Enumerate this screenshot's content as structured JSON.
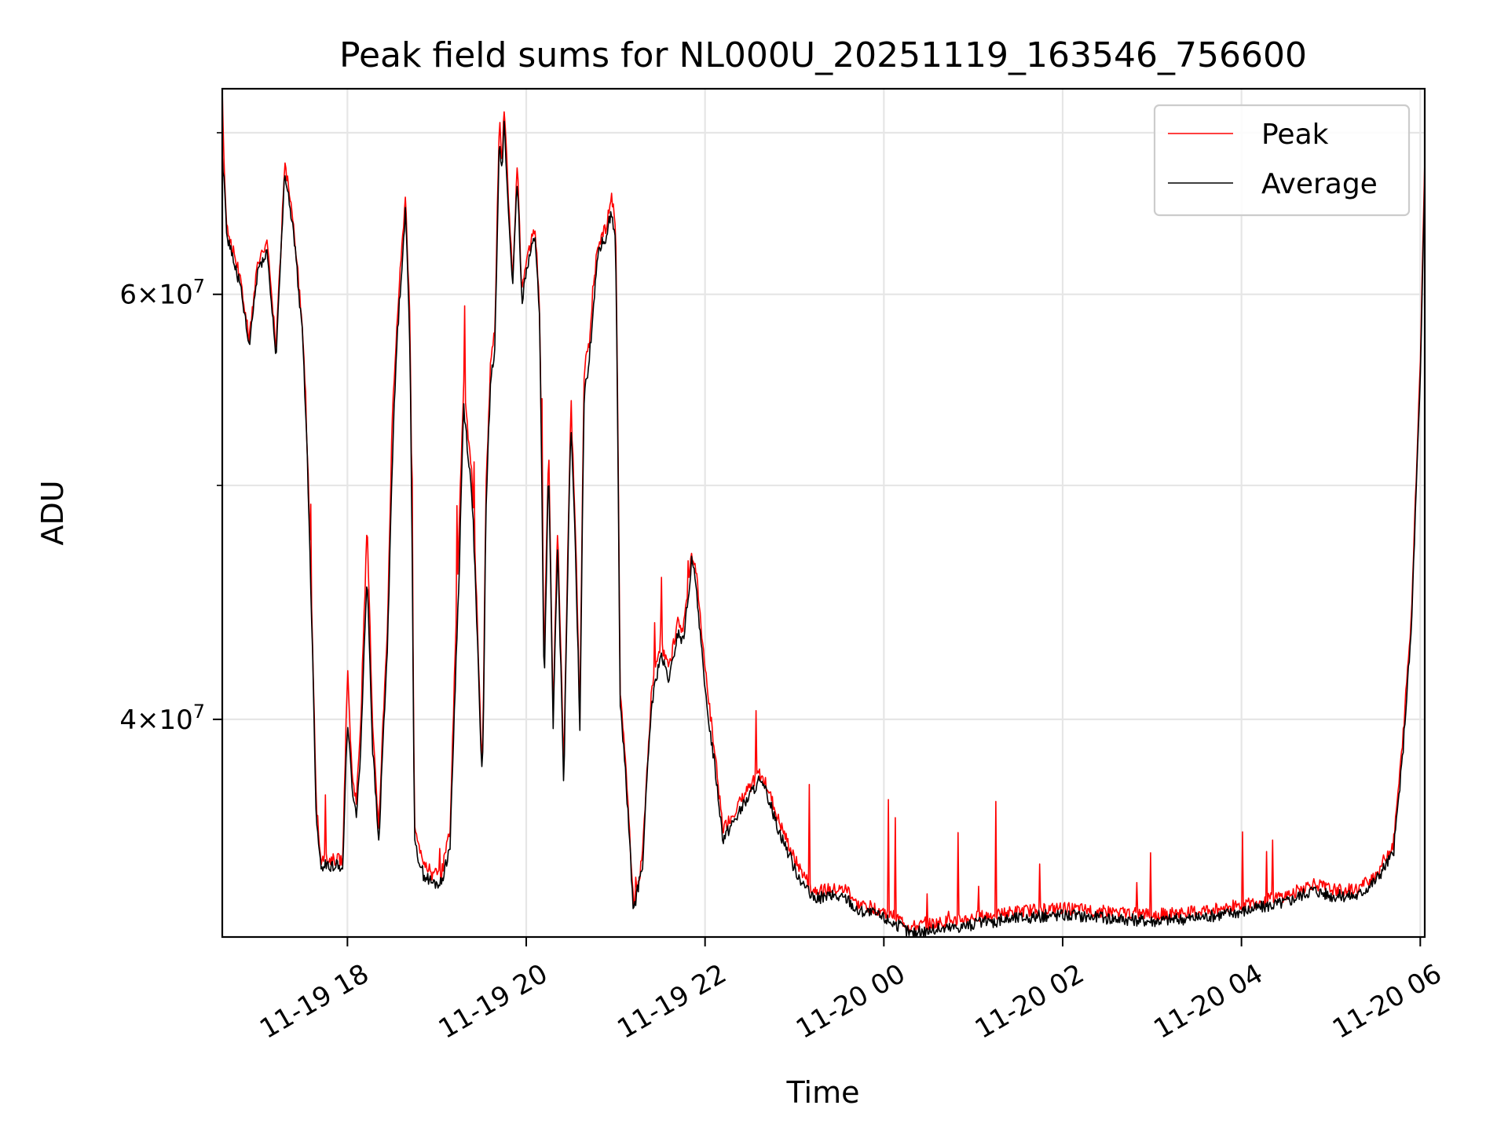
{
  "chart_data": {
    "type": "line",
    "title": "Peak field sums for NL000U_20251119_163546_756600",
    "xlabel": "Time",
    "ylabel": "ADU",
    "x_unit": "hours since 2025-11-19 00:00",
    "xlim": [
      16.6,
      30.05
    ],
    "ylim": [
      32500000,
      73000000
    ],
    "y_scale": "log",
    "grid": true,
    "legend_position": "top-right",
    "x_ticks": [
      {
        "value": 18,
        "label": "11-19 18"
      },
      {
        "value": 20,
        "label": "11-19 20"
      },
      {
        "value": 22,
        "label": "11-19 22"
      },
      {
        "value": 24,
        "label": "11-20 00"
      },
      {
        "value": 26,
        "label": "11-20 02"
      },
      {
        "value": 28,
        "label": "11-20 04"
      },
      {
        "value": 30,
        "label": "11-20 06"
      }
    ],
    "y_ticks_major": [
      {
        "value": 40000000,
        "base": "4",
        "exp": "7"
      },
      {
        "value": 60000000,
        "base": "6",
        "exp": "7"
      }
    ],
    "y_ticks_minor": [
      50000000,
      70000000
    ],
    "series": [
      {
        "name": "Peak",
        "color": "#ff0000",
        "x": [
          16.6,
          16.62,
          16.65,
          16.7,
          16.8,
          16.9,
          17.0,
          17.1,
          17.2,
          17.25,
          17.3,
          17.4,
          17.5,
          17.55,
          17.65,
          17.7,
          17.78,
          17.85,
          17.95,
          18.0,
          18.05,
          18.1,
          18.15,
          18.22,
          18.28,
          18.35,
          18.45,
          18.5,
          18.55,
          18.6,
          18.65,
          18.7,
          18.75,
          18.85,
          18.95,
          19.05,
          19.15,
          19.25,
          19.3,
          19.4,
          19.5,
          19.52,
          19.55,
          19.6,
          19.65,
          19.7,
          19.73,
          19.75,
          19.8,
          19.85,
          19.9,
          19.95,
          20.0,
          20.05,
          20.1,
          20.15,
          20.2,
          20.25,
          20.3,
          20.35,
          20.42,
          20.5,
          20.55,
          20.6,
          20.65,
          20.7,
          20.8,
          20.9,
          20.95,
          21.0,
          21.05,
          21.1,
          21.2,
          21.3,
          21.4,
          21.5,
          21.6,
          21.7,
          21.75,
          21.8,
          21.85,
          21.9,
          22.0,
          22.1,
          22.2,
          22.4,
          22.6,
          22.7,
          22.8,
          23.0,
          23.2,
          23.4,
          23.6,
          23.7,
          23.8,
          24.0,
          24.2,
          24.3,
          24.5,
          24.8,
          25.0,
          25.5,
          26.0,
          26.5,
          27.0,
          27.5,
          28.0,
          28.5,
          28.8,
          29.0,
          29.3,
          29.5,
          29.7,
          29.8,
          29.9,
          30.0,
          30.05
        ],
        "y": [
          73000000,
          68000000,
          64000000,
          63000000,
          61000000,
          57500000,
          62000000,
          63000000,
          57000000,
          62000000,
          68000000,
          64000000,
          58000000,
          52000000,
          37000000,
          35000000,
          35000000,
          35000000,
          35000000,
          42000000,
          38000000,
          37000000,
          40000000,
          48000000,
          40000000,
          36000000,
          44000000,
          53000000,
          58000000,
          62000000,
          66000000,
          58000000,
          36000000,
          35000000,
          34500000,
          34500000,
          36000000,
          48000000,
          55000000,
          50000000,
          38500000,
          40000000,
          50000000,
          56000000,
          58000000,
          71000000,
          68000000,
          72000000,
          66000000,
          61000000,
          68000000,
          60000000,
          62000000,
          63000000,
          64000000,
          59000000,
          42000000,
          52000000,
          40000000,
          48000000,
          38000000,
          54000000,
          48000000,
          40000000,
          56000000,
          57000000,
          63000000,
          64000000,
          66000000,
          64000000,
          41000000,
          39000000,
          33500000,
          35000000,
          41000000,
          43000000,
          42000000,
          44000000,
          43500000,
          45000000,
          47000000,
          46000000,
          42000000,
          39000000,
          36000000,
          37000000,
          38000000,
          37500000,
          36500000,
          35000000,
          34000000,
          34000000,
          34000000,
          33500000,
          33500000,
          33300000,
          33000000,
          32800000,
          32900000,
          33000000,
          33100000,
          33300000,
          33400000,
          33300000,
          33200000,
          33300000,
          33500000,
          33800000,
          34200000,
          34000000,
          34000000,
          34500000,
          35500000,
          39000000,
          44000000,
          56000000,
          68000000
        ]
      },
      {
        "name": "Average",
        "color": "#000000",
        "x": [
          16.6,
          16.62,
          16.65,
          16.7,
          16.8,
          16.9,
          17.0,
          17.1,
          17.2,
          17.25,
          17.3,
          17.4,
          17.5,
          17.55,
          17.65,
          17.7,
          17.78,
          17.85,
          17.95,
          18.0,
          18.05,
          18.1,
          18.15,
          18.22,
          18.28,
          18.35,
          18.45,
          18.5,
          18.55,
          18.6,
          18.65,
          18.7,
          18.75,
          18.85,
          18.95,
          19.05,
          19.15,
          19.25,
          19.3,
          19.4,
          19.5,
          19.52,
          19.55,
          19.6,
          19.65,
          19.7,
          19.73,
          19.75,
          19.8,
          19.85,
          19.9,
          19.95,
          20.0,
          20.05,
          20.1,
          20.15,
          20.2,
          20.25,
          20.3,
          20.35,
          20.42,
          20.5,
          20.55,
          20.6,
          20.65,
          20.7,
          20.8,
          20.9,
          20.95,
          21.0,
          21.05,
          21.1,
          21.2,
          21.3,
          21.4,
          21.5,
          21.6,
          21.7,
          21.75,
          21.8,
          21.85,
          21.9,
          22.0,
          22.1,
          22.2,
          22.4,
          22.6,
          22.7,
          22.8,
          23.0,
          23.2,
          23.4,
          23.6,
          23.7,
          23.8,
          24.0,
          24.2,
          24.3,
          24.5,
          24.8,
          25.0,
          25.5,
          26.0,
          26.5,
          27.0,
          27.5,
          28.0,
          28.5,
          28.8,
          29.0,
          29.3,
          29.5,
          29.7,
          29.8,
          29.9,
          30.0,
          30.05
        ],
        "y": [
          68500000,
          67000000,
          63500000,
          62500000,
          60500000,
          57000000,
          61500000,
          62500000,
          56500000,
          61500000,
          67500000,
          63500000,
          57500000,
          51500000,
          36500000,
          34800000,
          34800000,
          34800000,
          34800000,
          40000000,
          37500000,
          36500000,
          39000000,
          46000000,
          39000000,
          35500000,
          43000000,
          51000000,
          57000000,
          61000000,
          65000000,
          57000000,
          35500000,
          34500000,
          34200000,
          34200000,
          35500000,
          46000000,
          54000000,
          49000000,
          38000000,
          39500000,
          49000000,
          55000000,
          57000000,
          70000000,
          67000000,
          71000000,
          65000000,
          60500000,
          67000000,
          59500000,
          61500000,
          62500000,
          63500000,
          58500000,
          41000000,
          51000000,
          39500000,
          47000000,
          37500000,
          53000000,
          47000000,
          39500000,
          55000000,
          56000000,
          62500000,
          63500000,
          65000000,
          63000000,
          40500000,
          38500000,
          33300000,
          34800000,
          40500000,
          42500000,
          41500000,
          43500000,
          43000000,
          44500000,
          46500000,
          45500000,
          41000000,
          38500000,
          35700000,
          36700000,
          37700000,
          37200000,
          36200000,
          34700000,
          33700000,
          33800000,
          33700000,
          33300000,
          33300000,
          33100000,
          32800000,
          32600000,
          32700000,
          32800000,
          32900000,
          33100000,
          33200000,
          33100000,
          33000000,
          33100000,
          33300000,
          33600000,
          34000000,
          33800000,
          33800000,
          34300000,
          35200000,
          38500000,
          43500000,
          55000000,
          67000000
        ]
      }
    ]
  }
}
